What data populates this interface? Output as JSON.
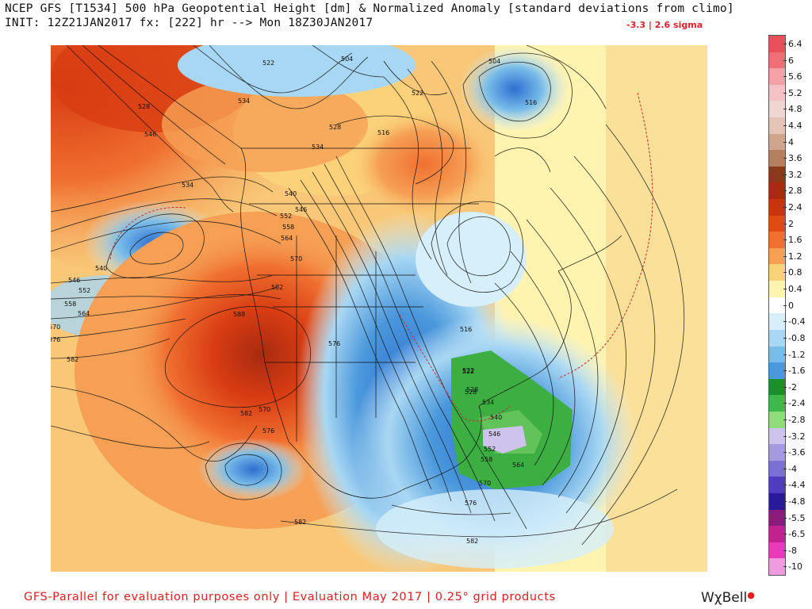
{
  "header": {
    "line1": "NCEP GFS [T1534] 500 hPa Geopotential Height [dm] & Normalized Anomaly [standard deviations from climo]",
    "line2": "INIT: 12Z21JAN2017 fx: [222] hr --> Mon 18Z30JAN2017",
    "range": "-3.3 | 2.6 sigma"
  },
  "colorbar": {
    "ticks": [
      "6.4",
      "6",
      "5.6",
      "5.2",
      "4.8",
      "4.4",
      "4",
      "3.6",
      "3.2",
      "2.8",
      "2.4",
      "2",
      "1.6",
      "1.2",
      "0.8",
      "0.4",
      "0",
      "-0.4",
      "-0.8",
      "-1.2",
      "-1.6",
      "-2",
      "-2.4",
      "-2.8",
      "-3.2",
      "-3.6",
      "-4",
      "-4.4",
      "-4.8",
      "-5.5",
      "-6.5",
      "-8",
      "-10"
    ],
    "colors": [
      "#e8505a",
      "#ef6f77",
      "#f3a0a6",
      "#f5c3c6",
      "#efd6d0",
      "#e3c4b6",
      "#cfa58e",
      "#b5805f",
      "#8a3a1a",
      "#a82a10",
      "#c8340e",
      "#e04a14",
      "#f07030",
      "#f6a055",
      "#fbd27a",
      "#fff3b0",
      "#ffffff",
      "#d6effa",
      "#a8d7f3",
      "#79bdea",
      "#4b98dc",
      "#1b8f28",
      "#40b84a",
      "#8fdc7a",
      "#cdc3ec",
      "#a59ae0",
      "#7c70d2",
      "#4f3dbd",
      "#2a1a9a",
      "#8a1c7c",
      "#c0228f",
      "#e83aba",
      "#f09adf"
    ]
  },
  "map": {
    "contour_labels": [
      "522",
      "504",
      "528",
      "534",
      "522",
      "516",
      "528",
      "504",
      "534",
      "546",
      "540",
      "534",
      "516",
      "528",
      "522",
      "546",
      "552",
      "558",
      "564",
      "570",
      "540",
      "546",
      "552",
      "558",
      "564",
      "570",
      "582",
      "588",
      "576",
      "582",
      "576",
      "582",
      "570",
      "576",
      "582",
      "522",
      "528",
      "534",
      "540",
      "546",
      "552",
      "558",
      "564",
      "570",
      "576",
      "582",
      "516"
    ]
  },
  "footer": {
    "text": "GFS-Parallel for evaluation purposes only | Evaluation May 2017 | 0.25° grid products",
    "brand": "WχBell"
  }
}
